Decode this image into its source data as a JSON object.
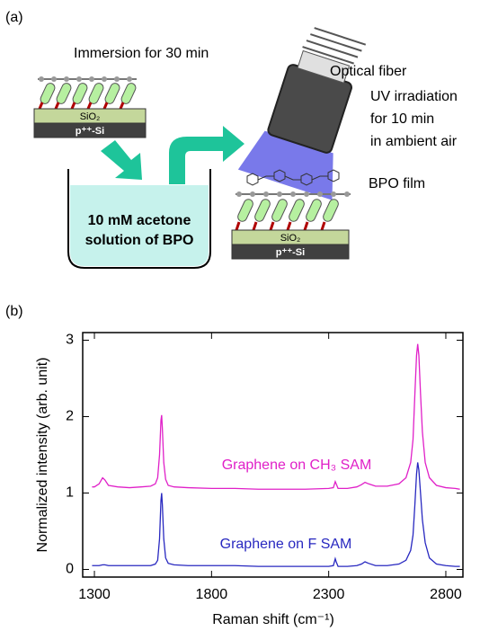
{
  "panel_labels": [
    "(a)",
    "(b)"
  ],
  "diagram": {
    "immersion": "Immersion for 30 min",
    "substrate_left": {
      "oxide": "SiO₂",
      "silicon": "p⁺⁺-Si"
    },
    "solution": [
      "10 mM acetone",
      "solution of BPO"
    ],
    "fiber": "Optical fiber",
    "uv": [
      "UV irradiation",
      "for 10 min",
      "in ambient air"
    ],
    "film": "BPO film",
    "substrate_right": {
      "oxide": "SiO₂",
      "silicon": "p⁺⁺-Si"
    }
  },
  "chart_data": {
    "type": "line",
    "x_label": "Raman shift (cm⁻¹)",
    "y_label": "Normalized intensity (arb. unit)",
    "x": [
      1290,
      1300,
      1320,
      1335,
      1345,
      1360,
      1400,
      1450,
      1500,
      1540,
      1560,
      1570,
      1578,
      1584,
      1587,
      1590,
      1596,
      1604,
      1615,
      1640,
      1700,
      1800,
      1900,
      2000,
      2100,
      2200,
      2300,
      2320,
      2328,
      2332,
      2340,
      2380,
      2420,
      2440,
      2455,
      2470,
      2500,
      2550,
      2600,
      2630,
      2650,
      2660,
      2668,
      2675,
      2680,
      2685,
      2692,
      2700,
      2712,
      2730,
      2760,
      2800,
      2840,
      2860
    ],
    "series": [
      {
        "name": "Graphene on CH₃ SAM",
        "color": "#e020c8",
        "values": [
          1.08,
          1.08,
          1.12,
          1.2,
          1.17,
          1.1,
          1.08,
          1.07,
          1.08,
          1.09,
          1.12,
          1.2,
          1.5,
          1.95,
          2.02,
          1.85,
          1.4,
          1.18,
          1.1,
          1.08,
          1.07,
          1.06,
          1.06,
          1.05,
          1.05,
          1.05,
          1.06,
          1.07,
          1.15,
          1.12,
          1.06,
          1.06,
          1.08,
          1.11,
          1.14,
          1.12,
          1.09,
          1.09,
          1.12,
          1.2,
          1.4,
          1.7,
          2.3,
          2.8,
          2.95,
          2.8,
          2.3,
          1.8,
          1.4,
          1.2,
          1.1,
          1.07,
          1.06,
          1.05
        ]
      },
      {
        "name": "Graphene on F SAM",
        "color": "#2828c0",
        "values": [
          0.05,
          0.05,
          0.05,
          0.06,
          0.06,
          0.05,
          0.05,
          0.05,
          0.05,
          0.05,
          0.07,
          0.12,
          0.4,
          0.9,
          1.0,
          0.85,
          0.4,
          0.15,
          0.08,
          0.06,
          0.05,
          0.05,
          0.05,
          0.04,
          0.04,
          0.04,
          0.04,
          0.05,
          0.14,
          0.1,
          0.04,
          0.04,
          0.05,
          0.07,
          0.1,
          0.08,
          0.05,
          0.05,
          0.07,
          0.12,
          0.25,
          0.45,
          0.85,
          1.25,
          1.4,
          1.3,
          1.0,
          0.65,
          0.35,
          0.15,
          0.07,
          0.05,
          0.04,
          0.04
        ]
      }
    ],
    "xlim": [
      1250,
      2873
    ],
    "ylim": [
      -0.1,
      3.1
    ],
    "xticks": [
      1300,
      1800,
      2300,
      2800
    ],
    "yticks": [
      0,
      1,
      2,
      3
    ]
  }
}
